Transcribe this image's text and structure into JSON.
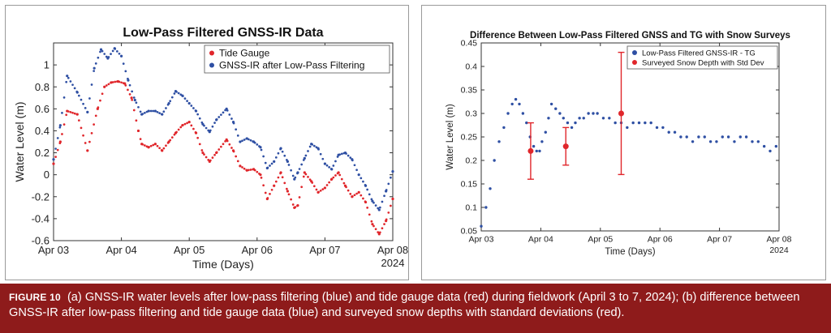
{
  "figure": {
    "label": "FIGURE 10",
    "caption": "(a) GNSS-IR water levels after low-pass filtering (blue) and tide gauge data (red) during fieldwork (April 3 to 7, 2024); (b) difference between GNSS-IR after low-pass filtering and tide gauge data (blue) and surveyed snow depths with standard deviations (red)."
  },
  "colors": {
    "red": "#e0262b",
    "blue": "#2e4fa3",
    "caption_bg": "#8e1b1b",
    "axis": "#333333"
  },
  "chart_data": [
    {
      "type": "scatter",
      "title": "Low-Pass Filtered GNSS-IR Data",
      "xlabel": "Time (Days)",
      "ylabel": "Water Level (m)",
      "year_label": "2024",
      "xlim": [
        0,
        5
      ],
      "ylim": [
        -0.6,
        1.2
      ],
      "x_ticks": [
        0,
        1,
        2,
        3,
        4,
        5
      ],
      "x_tick_labels": [
        "Apr 03",
        "Apr 04",
        "Apr 05",
        "Apr 06",
        "Apr 07",
        "Apr 08"
      ],
      "y_ticks": [
        -0.6,
        -0.4,
        -0.2,
        0,
        0.2,
        0.4,
        0.6,
        0.8,
        1
      ],
      "y_tick_labels": [
        "-0.6",
        "-0.4",
        "-0.2",
        "0",
        "0.2",
        "0.4",
        "0.6",
        "0.8",
        "1"
      ],
      "legend_position": "top-right",
      "series": [
        {
          "name": "Tide Gauge",
          "color": "#e0262b",
          "x": [
            0,
            0.1,
            0.2,
            0.35,
            0.5,
            0.65,
            0.75,
            0.85,
            0.95,
            1.05,
            1.15,
            1.25,
            1.3,
            1.4,
            1.5,
            1.6,
            1.7,
            1.8,
            1.9,
            2.0,
            2.1,
            2.2,
            2.3,
            2.4,
            2.55,
            2.65,
            2.75,
            2.85,
            2.95,
            3.05,
            3.15,
            3.25,
            3.35,
            3.45,
            3.55,
            3.6,
            3.7,
            3.8,
            3.9,
            4.0,
            4.1,
            4.2,
            4.3,
            4.4,
            4.5,
            4.6,
            4.7,
            4.8,
            4.9,
            5.0
          ],
          "values": [
            0.1,
            0.3,
            0.58,
            0.55,
            0.22,
            0.6,
            0.8,
            0.84,
            0.85,
            0.83,
            0.7,
            0.4,
            0.28,
            0.25,
            0.28,
            0.22,
            0.3,
            0.38,
            0.45,
            0.48,
            0.38,
            0.2,
            0.12,
            0.2,
            0.32,
            0.22,
            0.08,
            0.04,
            0.05,
            0.0,
            -0.22,
            -0.1,
            0.02,
            -0.15,
            -0.3,
            -0.28,
            0.02,
            -0.06,
            -0.16,
            -0.12,
            -0.04,
            0.02,
            -0.1,
            -0.2,
            -0.16,
            -0.25,
            -0.45,
            -0.54,
            -0.42,
            -0.22
          ]
        },
        {
          "name": "GNSS-IR after Low-Pass Filtering",
          "color": "#2e4fa3",
          "x": [
            0,
            0.1,
            0.2,
            0.35,
            0.5,
            0.6,
            0.7,
            0.8,
            0.9,
            1.0,
            1.1,
            1.2,
            1.3,
            1.4,
            1.5,
            1.6,
            1.7,
            1.8,
            1.9,
            2.0,
            2.1,
            2.2,
            2.3,
            2.4,
            2.55,
            2.65,
            2.75,
            2.85,
            2.95,
            3.05,
            3.15,
            3.25,
            3.35,
            3.45,
            3.55,
            3.6,
            3.7,
            3.8,
            3.9,
            4.0,
            4.1,
            4.2,
            4.3,
            4.4,
            4.5,
            4.6,
            4.7,
            4.8,
            4.9,
            5.0
          ],
          "values": [
            0.14,
            0.45,
            0.9,
            0.75,
            0.57,
            0.97,
            1.14,
            1.06,
            1.15,
            1.08,
            0.86,
            0.68,
            0.55,
            0.58,
            0.58,
            0.55,
            0.65,
            0.76,
            0.72,
            0.65,
            0.58,
            0.46,
            0.39,
            0.5,
            0.6,
            0.48,
            0.3,
            0.33,
            0.3,
            0.25,
            0.06,
            0.12,
            0.24,
            0.12,
            -0.04,
            0.02,
            0.15,
            0.28,
            0.24,
            0.1,
            0.05,
            0.18,
            0.2,
            0.14,
            0.0,
            -0.1,
            -0.24,
            -0.32,
            -0.15,
            0.03
          ]
        }
      ]
    },
    {
      "type": "scatter",
      "title": "Difference Between Low-Pass Filtered GNSS and TG with Snow Surveys",
      "xlabel": "Time (Days)",
      "ylabel": "Water Level (m)",
      "year_label": "2024",
      "xlim": [
        0,
        5
      ],
      "ylim": [
        0.05,
        0.45
      ],
      "x_ticks": [
        0,
        1,
        2,
        3,
        4,
        5
      ],
      "x_tick_labels": [
        "Apr 03",
        "Apr 04",
        "Apr 05",
        "Apr 06",
        "Apr 07",
        "Apr 08"
      ],
      "y_ticks": [
        0.05,
        0.1,
        0.15,
        0.2,
        0.25,
        0.3,
        0.35,
        0.4,
        0.45
      ],
      "y_tick_labels": [
        "0.05",
        "0.1",
        "0.15",
        "0.2",
        "0.25",
        "0.3",
        "0.35",
        "0.4",
        "0.45"
      ],
      "legend_position": "top-right",
      "series": [
        {
          "name": "Low-Pass Filtered GNSS-IR - TG",
          "color": "#2e4fa3",
          "x": [
            0,
            0.08,
            0.15,
            0.22,
            0.3,
            0.38,
            0.45,
            0.52,
            0.58,
            0.64,
            0.7,
            0.76,
            0.82,
            0.88,
            0.93,
            0.98,
            1.02,
            1.08,
            1.13,
            1.18,
            1.25,
            1.32,
            1.38,
            1.45,
            1.52,
            1.58,
            1.65,
            1.72,
            1.8,
            1.88,
            1.95,
            2.05,
            2.15,
            2.25,
            2.35,
            2.45,
            2.55,
            2.65,
            2.75,
            2.85,
            2.95,
            3.05,
            3.15,
            3.25,
            3.35,
            3.45,
            3.55,
            3.65,
            3.75,
            3.85,
            3.95,
            4.05,
            4.15,
            4.25,
            4.35,
            4.45,
            4.55,
            4.65,
            4.75,
            4.85,
            4.95
          ],
          "values": [
            0.06,
            0.1,
            0.14,
            0.2,
            0.24,
            0.27,
            0.3,
            0.32,
            0.33,
            0.32,
            0.3,
            0.28,
            0.25,
            0.23,
            0.22,
            0.22,
            0.24,
            0.26,
            0.29,
            0.32,
            0.31,
            0.3,
            0.29,
            0.28,
            0.27,
            0.28,
            0.29,
            0.29,
            0.3,
            0.3,
            0.3,
            0.29,
            0.29,
            0.28,
            0.28,
            0.27,
            0.28,
            0.28,
            0.28,
            0.28,
            0.27,
            0.27,
            0.26,
            0.26,
            0.25,
            0.25,
            0.24,
            0.25,
            0.25,
            0.24,
            0.24,
            0.25,
            0.25,
            0.24,
            0.25,
            0.25,
            0.24,
            0.24,
            0.23,
            0.22,
            0.23
          ]
        },
        {
          "name": "Surveyed Snow Depth with Std Dev",
          "color": "#e0262b",
          "type": "errorbar",
          "x": [
            0.83,
            1.42,
            2.35
          ],
          "values": [
            0.22,
            0.23,
            0.3
          ],
          "lower": [
            0.16,
            0.19,
            0.17
          ],
          "upper": [
            0.28,
            0.27,
            0.43
          ]
        }
      ]
    }
  ]
}
